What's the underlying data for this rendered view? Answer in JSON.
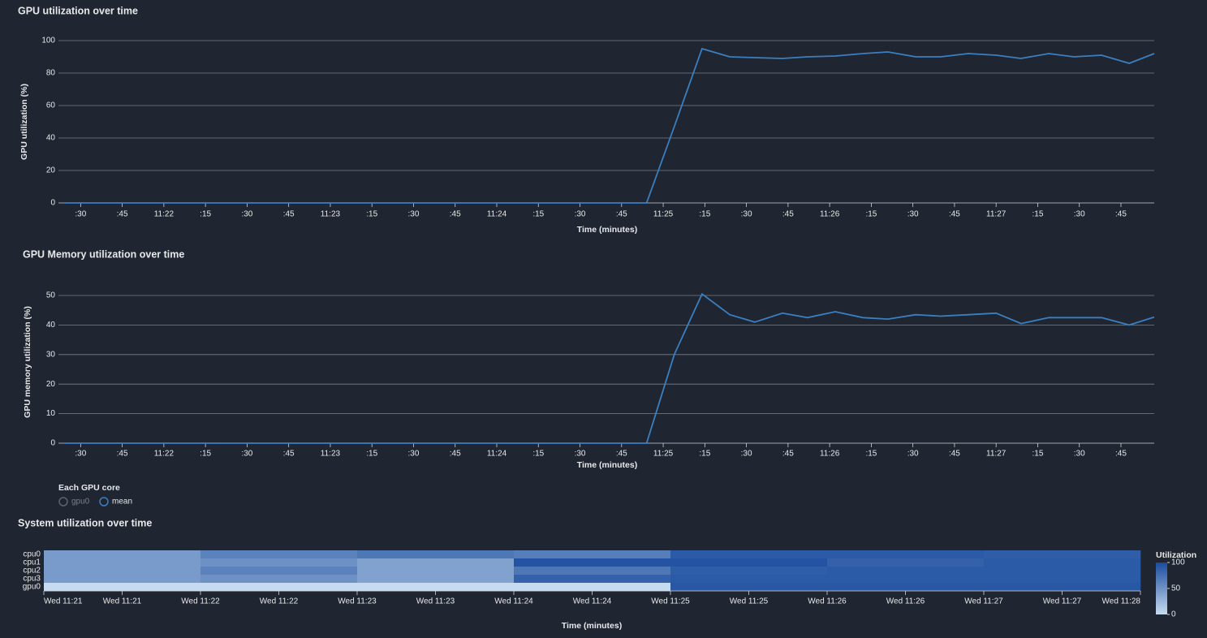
{
  "chart_data": [
    {
      "type": "line",
      "title": "GPU utilization over time",
      "x_label": "Time (minutes)",
      "y_label": "GPU utilization (%)",
      "x": [
        "11:21:24",
        "11:21:34",
        "11:21:44",
        "11:21:54",
        "11:22:04",
        "11:22:14",
        "11:22:24",
        "11:22:34",
        "11:22:44",
        "11:22:54",
        "11:23:04",
        "11:23:14",
        "11:23:24",
        "11:23:34",
        "11:23:44",
        "11:23:54",
        "11:24:04",
        "11:24:14",
        "11:24:24",
        "11:24:34",
        "11:24:44",
        "11:24:54",
        "11:25:04",
        "11:25:14",
        "11:25:24",
        "11:25:33",
        "11:25:43",
        "11:25:52",
        "11:26:02",
        "11:26:12",
        "11:26:21",
        "11:26:31",
        "11:26:40",
        "11:26:50",
        "11:27:00",
        "11:27:09",
        "11:27:19",
        "11:27:28",
        "11:27:38",
        "11:27:48",
        "11:27:57"
      ],
      "series": [
        {
          "color": "#3b7fc1",
          "values": [
            0,
            0,
            0,
            0,
            0,
            0,
            0,
            0,
            0,
            0,
            0,
            0,
            0,
            0,
            0,
            0,
            0,
            0,
            0,
            0,
            0,
            0,
            47,
            95,
            90,
            89.5,
            89,
            90,
            90.5,
            92,
            93,
            90,
            90,
            92,
            91,
            89,
            92,
            90,
            91,
            86,
            92
          ]
        }
      ],
      "xlim": [
        "11:21:22",
        "11:27:57"
      ],
      "xticks": [
        {
          "value": "11:21:30",
          "label": ":30"
        },
        {
          "value": "11:21:45",
          "label": ":45"
        },
        {
          "value": "11:22:00",
          "label": "11:22"
        },
        {
          "value": "11:22:15",
          "label": ":15"
        },
        {
          "value": "11:22:30",
          "label": ":30"
        },
        {
          "value": "11:22:45",
          "label": ":45"
        },
        {
          "value": "11:23:00",
          "label": "11:23"
        },
        {
          "value": "11:23:15",
          "label": ":15"
        },
        {
          "value": "11:23:30",
          "label": ":30"
        },
        {
          "value": "11:23:45",
          "label": ":45"
        },
        {
          "value": "11:24:00",
          "label": "11:24"
        },
        {
          "value": "11:24:15",
          "label": ":15"
        },
        {
          "value": "11:24:30",
          "label": ":30"
        },
        {
          "value": "11:24:45",
          "label": ":45"
        },
        {
          "value": "11:25:00",
          "label": "11:25"
        },
        {
          "value": "11:25:15",
          "label": ":15"
        },
        {
          "value": "11:25:30",
          "label": ":30"
        },
        {
          "value": "11:25:45",
          "label": ":45"
        },
        {
          "value": "11:26:00",
          "label": "11:26"
        },
        {
          "value": "11:26:15",
          "label": ":15"
        },
        {
          "value": "11:26:30",
          "label": ":30"
        },
        {
          "value": "11:26:45",
          "label": ":45"
        },
        {
          "value": "11:27:00",
          "label": "11:27"
        },
        {
          "value": "11:27:15",
          "label": ":15"
        },
        {
          "value": "11:27:30",
          "label": ":30"
        },
        {
          "value": "11:27:45",
          "label": ":45"
        }
      ],
      "ylim": [
        0,
        100
      ],
      "yticks": [
        0,
        20,
        40,
        60,
        80,
        100
      ],
      "grid": true
    },
    {
      "type": "line",
      "title": "GPU Memory utilization over time",
      "x_label": "Time (minutes)",
      "y_label": "GPU memory utilization (%)",
      "x": [
        "11:21:24",
        "11:21:34",
        "11:21:44",
        "11:21:54",
        "11:22:04",
        "11:22:14",
        "11:22:24",
        "11:22:34",
        "11:22:44",
        "11:22:54",
        "11:23:04",
        "11:23:14",
        "11:23:24",
        "11:23:34",
        "11:23:44",
        "11:23:54",
        "11:24:04",
        "11:24:14",
        "11:24:24",
        "11:24:34",
        "11:24:44",
        "11:24:54",
        "11:25:04",
        "11:25:14",
        "11:25:24",
        "11:25:33",
        "11:25:43",
        "11:25:52",
        "11:26:02",
        "11:26:12",
        "11:26:21",
        "11:26:31",
        "11:26:40",
        "11:26:50",
        "11:27:00",
        "11:27:09",
        "11:27:19",
        "11:27:28",
        "11:27:38",
        "11:27:48",
        "11:27:57"
      ],
      "series": [
        {
          "color": "#3b7fc1",
          "values": [
            0,
            0,
            0,
            0,
            0,
            0,
            0,
            0,
            0,
            0,
            0,
            0,
            0,
            0,
            0,
            0,
            0,
            0,
            0,
            0,
            0,
            0,
            30,
            50.5,
            43.5,
            41,
            44,
            42.5,
            44.5,
            42.5,
            42,
            43.5,
            43,
            43.5,
            44,
            40.5,
            42.5,
            42.5,
            42.5,
            40,
            42.7
          ]
        }
      ],
      "xlim": [
        "11:21:22",
        "11:27:57"
      ],
      "xticks": [
        {
          "value": "11:21:30",
          "label": ":30"
        },
        {
          "value": "11:21:45",
          "label": ":45"
        },
        {
          "value": "11:22:00",
          "label": "11:22"
        },
        {
          "value": "11:22:15",
          "label": ":15"
        },
        {
          "value": "11:22:30",
          "label": ":30"
        },
        {
          "value": "11:22:45",
          "label": ":45"
        },
        {
          "value": "11:23:00",
          "label": "11:23"
        },
        {
          "value": "11:23:15",
          "label": ":15"
        },
        {
          "value": "11:23:30",
          "label": ":30"
        },
        {
          "value": "11:23:45",
          "label": ":45"
        },
        {
          "value": "11:24:00",
          "label": "11:24"
        },
        {
          "value": "11:24:15",
          "label": ":15"
        },
        {
          "value": "11:24:30",
          "label": ":30"
        },
        {
          "value": "11:24:45",
          "label": ":45"
        },
        {
          "value": "11:25:00",
          "label": "11:25"
        },
        {
          "value": "11:25:15",
          "label": ":15"
        },
        {
          "value": "11:25:30",
          "label": ":30"
        },
        {
          "value": "11:25:45",
          "label": ":45"
        },
        {
          "value": "11:26:00",
          "label": "11:26"
        },
        {
          "value": "11:26:15",
          "label": ":15"
        },
        {
          "value": "11:26:30",
          "label": ":30"
        },
        {
          "value": "11:26:45",
          "label": ":45"
        },
        {
          "value": "11:27:00",
          "label": "11:27"
        },
        {
          "value": "11:27:15",
          "label": ":15"
        },
        {
          "value": "11:27:30",
          "label": ":30"
        },
        {
          "value": "11:27:45",
          "label": ":45"
        }
      ],
      "ylim": [
        0,
        50
      ],
      "yticks": [
        0,
        10,
        20,
        30,
        40,
        50
      ],
      "grid": true,
      "legend": {
        "title": "Each GPU core",
        "entries": [
          {
            "name": "gpu0",
            "active": false
          },
          {
            "name": "mean",
            "active": true
          }
        ]
      }
    },
    {
      "type": "heatmap",
      "title": "System utilization over time",
      "x_label": "Time (minutes)",
      "rows": [
        "cpu0",
        "cpu1",
        "cpu2",
        "cpu3",
        "gpu0"
      ],
      "x_bins": [
        "11:21:00",
        "11:22:00",
        "11:23:00",
        "11:24:00",
        "11:25:00",
        "11:26:00",
        "11:27:00",
        "11:28:00"
      ],
      "values": [
        [
          45,
          62,
          70,
          65,
          90,
          90,
          88
        ],
        [
          45,
          52,
          40,
          95,
          95,
          85,
          90
        ],
        [
          45,
          62,
          40,
          70,
          88,
          90,
          90
        ],
        [
          45,
          52,
          40,
          85,
          90,
          90,
          90
        ],
        [
          0,
          0,
          0,
          0,
          92,
          92,
          92
        ]
      ],
      "xlim": [
        "11:21:00",
        "11:28:00"
      ],
      "xticks": [
        {
          "value": "11:21:00",
          "label": "Wed 11:21"
        },
        {
          "value": "11:21:30",
          "label": "Wed 11:21"
        },
        {
          "value": "11:22:00",
          "label": "Wed 11:22"
        },
        {
          "value": "11:22:30",
          "label": "Wed 11:22"
        },
        {
          "value": "11:23:00",
          "label": "Wed 11:23"
        },
        {
          "value": "11:23:30",
          "label": "Wed 11:23"
        },
        {
          "value": "11:24:00",
          "label": "Wed 11:24"
        },
        {
          "value": "11:24:30",
          "label": "Wed 11:24"
        },
        {
          "value": "11:25:00",
          "label": "Wed 11:25"
        },
        {
          "value": "11:25:30",
          "label": "Wed 11:25"
        },
        {
          "value": "11:26:00",
          "label": "Wed 11:26"
        },
        {
          "value": "11:26:30",
          "label": "Wed 11:26"
        },
        {
          "value": "11:27:00",
          "label": "Wed 11:27"
        },
        {
          "value": "11:27:30",
          "label": "Wed 11:27"
        },
        {
          "value": "11:28:00",
          "label": "Wed 11:28"
        }
      ],
      "colorbar_title": "Utilization",
      "zlim": [
        0,
        100
      ],
      "zticks": [
        0,
        50,
        100
      ],
      "colors": [
        "#c6dbef",
        "#1a4c9e"
      ]
    }
  ]
}
